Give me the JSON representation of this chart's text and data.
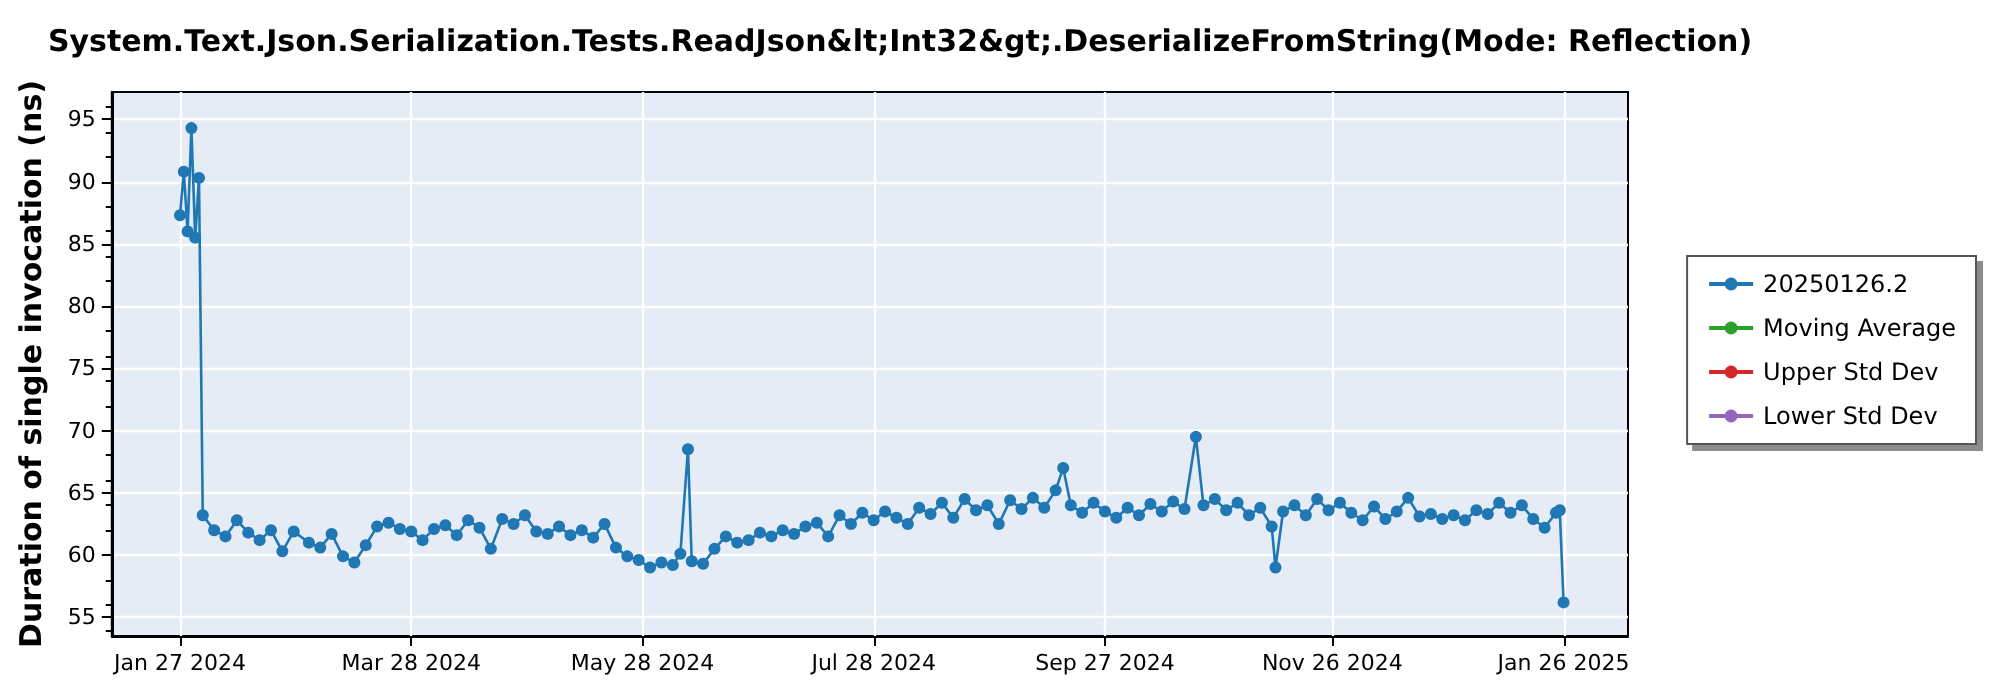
{
  "chart_data": {
    "type": "line",
    "title": "System.Text.Json.Serialization.Tests.ReadJson&lt;Int32&gt;.DeserializeFromString(Mode: Reflection)",
    "ylabel": "Duration of single invocation (ns)",
    "x": [
      "2024-01-27",
      "2024-01-28",
      "2024-01-29",
      "2024-01-30",
      "2024-01-31",
      "2024-02-01",
      "2024-02-02",
      "2024-02-05",
      "2024-02-08",
      "2024-02-11",
      "2024-02-14",
      "2024-02-17",
      "2024-02-20",
      "2024-02-23",
      "2024-02-26",
      "2024-03-01",
      "2024-03-04",
      "2024-03-07",
      "2024-03-10",
      "2024-03-13",
      "2024-03-16",
      "2024-03-19",
      "2024-03-22",
      "2024-03-25",
      "2024-03-28",
      "2024-03-31",
      "2024-04-03",
      "2024-04-06",
      "2024-04-09",
      "2024-04-12",
      "2024-04-15",
      "2024-04-18",
      "2024-04-21",
      "2024-04-24",
      "2024-04-27",
      "2024-04-30",
      "2024-05-03",
      "2024-05-06",
      "2024-05-09",
      "2024-05-12",
      "2024-05-15",
      "2024-05-18",
      "2024-05-21",
      "2024-05-24",
      "2024-05-27",
      "2024-05-30",
      "2024-06-02",
      "2024-06-05",
      "2024-06-07",
      "2024-06-09",
      "2024-06-10",
      "2024-06-13",
      "2024-06-16",
      "2024-06-19",
      "2024-06-22",
      "2024-06-25",
      "2024-06-28",
      "2024-07-01",
      "2024-07-04",
      "2024-07-07",
      "2024-07-10",
      "2024-07-13",
      "2024-07-16",
      "2024-07-19",
      "2024-07-22",
      "2024-07-25",
      "2024-07-28",
      "2024-07-31",
      "2024-08-03",
      "2024-08-06",
      "2024-08-09",
      "2024-08-12",
      "2024-08-15",
      "2024-08-18",
      "2024-08-21",
      "2024-08-24",
      "2024-08-27",
      "2024-08-30",
      "2024-09-02",
      "2024-09-05",
      "2024-09-08",
      "2024-09-11",
      "2024-09-14",
      "2024-09-16",
      "2024-09-18",
      "2024-09-21",
      "2024-09-24",
      "2024-09-27",
      "2024-09-30",
      "2024-10-03",
      "2024-10-06",
      "2024-10-09",
      "2024-10-12",
      "2024-10-15",
      "2024-10-18",
      "2024-10-21",
      "2024-10-23",
      "2024-10-26",
      "2024-10-29",
      "2024-11-01",
      "2024-11-04",
      "2024-11-07",
      "2024-11-10",
      "2024-11-11",
      "2024-11-13",
      "2024-11-16",
      "2024-11-19",
      "2024-11-22",
      "2024-11-25",
      "2024-11-28",
      "2024-12-01",
      "2024-12-04",
      "2024-12-07",
      "2024-12-10",
      "2024-12-13",
      "2024-12-16",
      "2024-12-19",
      "2024-12-22",
      "2024-12-25",
      "2024-12-28",
      "2024-12-31",
      "2025-01-03",
      "2025-01-06",
      "2025-01-09",
      "2025-01-12",
      "2025-01-15",
      "2025-01-18",
      "2025-01-21",
      "2025-01-24",
      "2025-01-25",
      "2025-01-26"
    ],
    "series": [
      {
        "name": "20250126.2",
        "color": "#1f77b4",
        "values": [
          87.3,
          90.8,
          86.0,
          94.3,
          85.5,
          90.3,
          63.2,
          62.0,
          61.5,
          62.8,
          61.8,
          61.2,
          62.0,
          60.3,
          61.9,
          61.0,
          60.6,
          61.7,
          59.9,
          59.4,
          60.8,
          62.3,
          62.6,
          62.1,
          61.9,
          61.2,
          62.1,
          62.4,
          61.6,
          62.8,
          62.2,
          60.5,
          62.9,
          62.5,
          63.2,
          61.9,
          61.7,
          62.3,
          61.6,
          62.0,
          61.4,
          62.5,
          60.6,
          59.9,
          59.6,
          59.0,
          59.4,
          59.2,
          60.1,
          68.5,
          59.5,
          59.3,
          60.5,
          61.5,
          61.0,
          61.2,
          61.8,
          61.5,
          62.0,
          61.7,
          62.3,
          62.6,
          61.5,
          63.2,
          62.5,
          63.4,
          62.8,
          63.5,
          63.0,
          62.5,
          63.8,
          63.3,
          64.2,
          63.0,
          64.5,
          63.6,
          64.0,
          62.5,
          64.4,
          63.7,
          64.6,
          63.8,
          65.2,
          67.0,
          64.0,
          63.4,
          64.2,
          63.5,
          63.0,
          63.8,
          63.2,
          64.1,
          63.5,
          64.3,
          63.7,
          69.5,
          64.0,
          64.5,
          63.6,
          64.2,
          63.2,
          63.8,
          62.3,
          59.0,
          63.5,
          64.0,
          63.2,
          64.5,
          63.6,
          64.2,
          63.4,
          62.8,
          63.9,
          62.9,
          63.5,
          64.6,
          63.1,
          63.3,
          62.9,
          63.2,
          62.8,
          63.6,
          63.3,
          64.2,
          63.4,
          64.0,
          62.9,
          62.2,
          63.4,
          63.6,
          56.2
        ]
      },
      {
        "name": "Moving Average",
        "color": "#2ca02c",
        "values": [
          null,
          null,
          null,
          null,
          null,
          null,
          null,
          null,
          null,
          null,
          null,
          null,
          null,
          null,
          null,
          null,
          null,
          null,
          null,
          null,
          null,
          null,
          null,
          null,
          null,
          null,
          null,
          null,
          null,
          null,
          null,
          null,
          null,
          null,
          null,
          null,
          null,
          null,
          null,
          null,
          null,
          null,
          null,
          null,
          null,
          null,
          null,
          null,
          null,
          null,
          null,
          null,
          null,
          null,
          null,
          null,
          null,
          null,
          null,
          null,
          null,
          null,
          null,
          null,
          null,
          null,
          null,
          null,
          null,
          null,
          null,
          null,
          null,
          null,
          null,
          null,
          null,
          null,
          null,
          null,
          null,
          null,
          null,
          null,
          null,
          null,
          null,
          null,
          null,
          null,
          null,
          null,
          null,
          null,
          null,
          null,
          null,
          null,
          null,
          null,
          null,
          null,
          null,
          null,
          null,
          null,
          null,
          null,
          null,
          null,
          null,
          null,
          null,
          null,
          null,
          null,
          null,
          null,
          null,
          null,
          null,
          null,
          null,
          null,
          null,
          null,
          null,
          null,
          null,
          null,
          null
        ]
      },
      {
        "name": "Upper Std Dev",
        "color": "#d62728",
        "values": [
          null,
          null,
          null,
          null,
          null,
          null,
          null,
          null,
          null,
          null,
          null,
          null,
          null,
          null,
          null,
          null,
          null,
          null,
          null,
          null,
          null,
          null,
          null,
          null,
          null,
          null,
          null,
          null,
          null,
          null,
          null,
          null,
          null,
          null,
          null,
          null,
          null,
          null,
          null,
          null,
          null,
          null,
          null,
          null,
          null,
          null,
          null,
          null,
          null,
          null,
          null,
          null,
          null,
          null,
          null,
          null,
          null,
          null,
          null,
          null,
          null,
          null,
          null,
          null,
          null,
          null,
          null,
          null,
          null,
          null,
          null,
          null,
          null,
          null,
          null,
          null,
          null,
          null,
          null,
          null,
          null,
          null,
          null,
          null,
          null,
          null,
          null,
          null,
          null,
          null,
          null,
          null,
          null,
          null,
          null,
          null,
          null,
          null,
          null,
          null,
          null,
          null,
          null,
          null,
          null,
          null,
          null,
          null,
          null,
          null,
          null,
          null,
          null,
          null,
          null,
          null,
          null,
          null,
          null,
          null,
          null,
          null,
          null,
          null,
          null,
          null,
          null,
          null,
          null,
          null,
          null
        ]
      },
      {
        "name": "Lower Std Dev",
        "color": "#9467bd",
        "values": [
          null,
          null,
          null,
          null,
          null,
          null,
          null,
          null,
          null,
          null,
          null,
          null,
          null,
          null,
          null,
          null,
          null,
          null,
          null,
          null,
          null,
          null,
          null,
          null,
          null,
          null,
          null,
          null,
          null,
          null,
          null,
          null,
          null,
          null,
          null,
          null,
          null,
          null,
          null,
          null,
          null,
          null,
          null,
          null,
          null,
          null,
          null,
          null,
          null,
          null,
          null,
          null,
          null,
          null,
          null,
          null,
          null,
          null,
          null,
          null,
          null,
          null,
          null,
          null,
          null,
          null,
          null,
          null,
          null,
          null,
          null,
          null,
          null,
          null,
          null,
          null,
          null,
          null,
          null,
          null,
          null,
          null,
          null,
          null,
          null,
          null,
          null,
          null,
          null,
          null,
          null,
          null,
          null,
          null,
          null,
          null,
          null,
          null,
          null,
          null,
          null,
          null,
          null,
          null,
          null,
          null,
          null,
          null,
          null,
          null,
          null,
          null,
          null,
          null,
          null,
          null,
          null,
          null,
          null,
          null,
          null,
          null,
          null,
          null,
          null,
          null,
          null,
          null,
          null,
          null,
          null
        ]
      }
    ],
    "xlim": [
      "2024-01-09",
      "2025-02-12"
    ],
    "xticks": [
      {
        "value": "2024-01-27",
        "label": "Jan 27 2024"
      },
      {
        "value": "2024-03-28",
        "label": "Mar 28 2024"
      },
      {
        "value": "2024-05-28",
        "label": "May 28 2024"
      },
      {
        "value": "2024-07-28",
        "label": "Jul 28 2024"
      },
      {
        "value": "2024-09-27",
        "label": "Sep 27 2024"
      },
      {
        "value": "2024-11-26",
        "label": "Nov 26 2024"
      },
      {
        "value": "2025-01-26",
        "label": "Jan 26 2025"
      }
    ],
    "ylim": [
      53.5,
      97.2
    ],
    "yticks": [
      55,
      60,
      65,
      70,
      75,
      80,
      85,
      90,
      95
    ],
    "grid": true,
    "legend": "right",
    "marker": "circle",
    "line_style": "solid"
  }
}
